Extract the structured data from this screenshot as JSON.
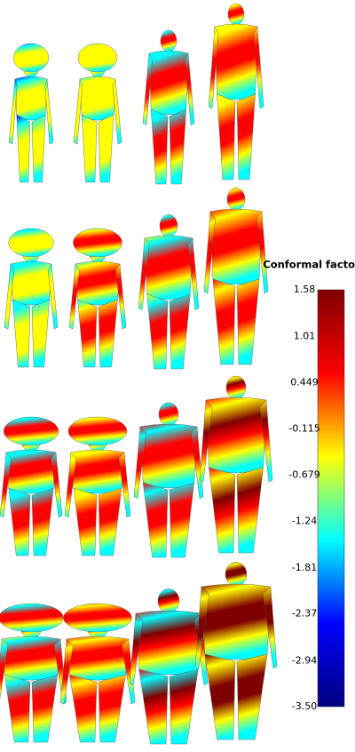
{
  "colorbar": {
    "title": "Conformal factor",
    "lim": [
      -3.5,
      1.58
    ],
    "ticks": [
      1.58,
      1.01,
      0.449,
      -0.115,
      -0.679,
      -1.24,
      -1.81,
      -2.37,
      -2.94,
      {
        "value": -3.5,
        "label": "-3.50"
      }
    ],
    "colors": [
      "#00007f",
      "#0000ff",
      "#00ffff",
      "#ffff00",
      "#ff0000",
      "#7f0000"
    ]
  }
}
